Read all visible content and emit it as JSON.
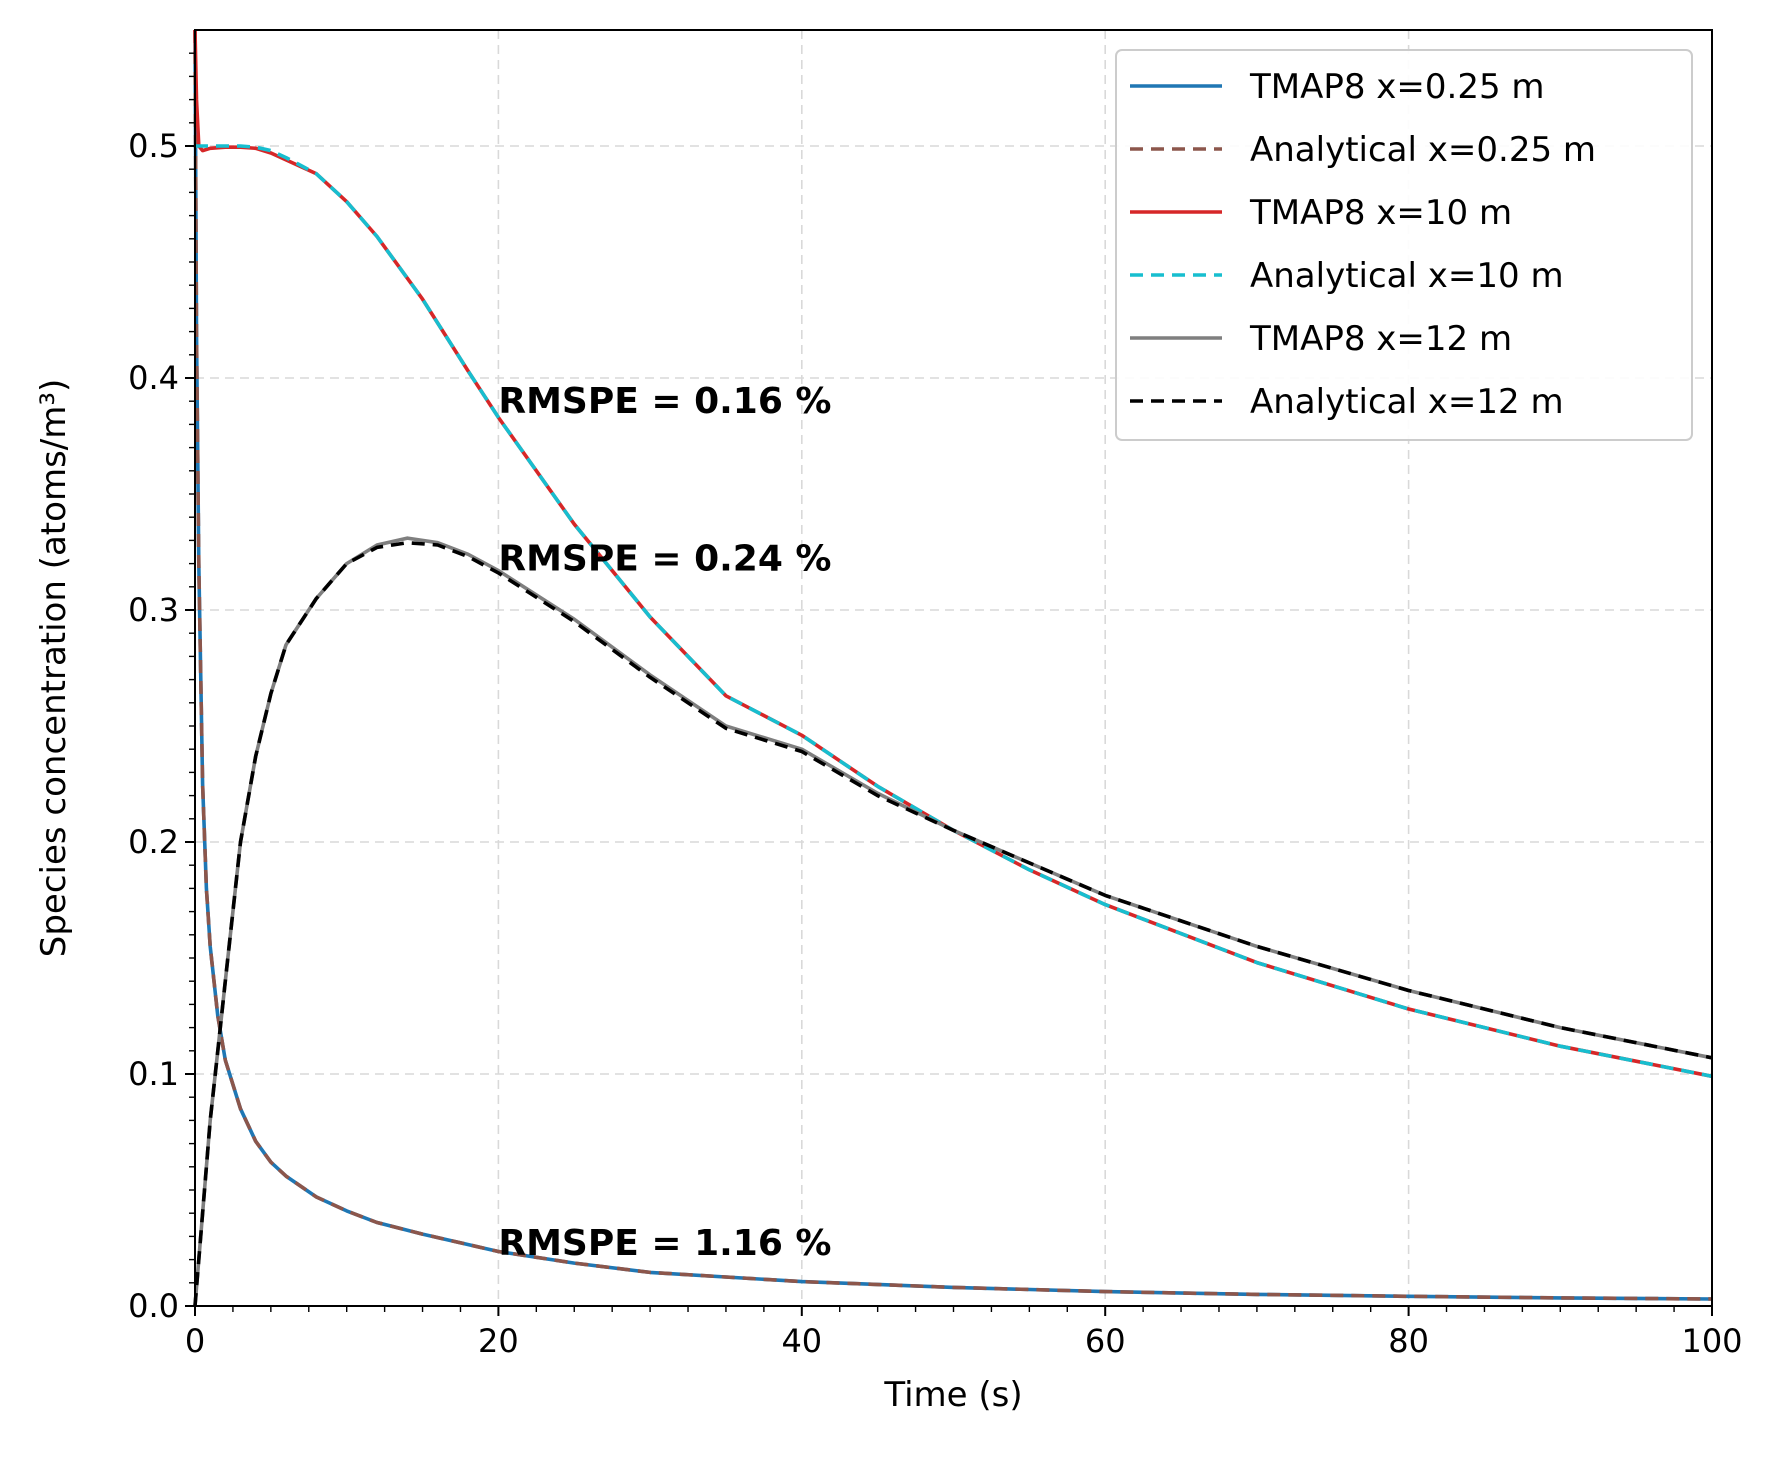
{
  "chart_data": {
    "type": "line",
    "xlabel": "Time (s)",
    "ylabel": "Species concentration (atoms/m³)",
    "xlim": [
      0,
      100
    ],
    "ylim": [
      0,
      0.55
    ],
    "x_ticks": [
      0,
      20,
      40,
      60,
      80,
      100
    ],
    "y_ticks": [
      0.0,
      0.1,
      0.2,
      0.3,
      0.4,
      0.5
    ],
    "x_tick_labels": [
      "0",
      "20",
      "40",
      "60",
      "80",
      "100"
    ],
    "y_tick_labels": [
      "0.0",
      "0.1",
      "0.2",
      "0.3",
      "0.4",
      "0.5"
    ],
    "grid": true,
    "legend_position": "top-right",
    "annotations": [
      {
        "text": "RMSPE = 0.16 %",
        "x": 20,
        "y": 0.385
      },
      {
        "text": "RMSPE = 0.24 %",
        "x": 20,
        "y": 0.317
      },
      {
        "text": "RMSPE = 1.16 %",
        "x": 20,
        "y": 0.022
      }
    ],
    "series": [
      {
        "name": "TMAP8 x=0.25 m",
        "color": "#1f77b4",
        "style": "solid",
        "x": [
          0,
          0.1,
          0.25,
          0.5,
          0.75,
          1,
          1.5,
          2,
          3,
          4,
          5,
          6,
          8,
          10,
          12,
          15,
          20,
          25,
          30,
          40,
          50,
          60,
          70,
          80,
          90,
          100
        ],
        "y": [
          0.55,
          0.42,
          0.32,
          0.225,
          0.18,
          0.155,
          0.125,
          0.106,
          0.085,
          0.071,
          0.062,
          0.056,
          0.047,
          0.041,
          0.036,
          0.031,
          0.0235,
          0.0185,
          0.0145,
          0.0105,
          0.008,
          0.0062,
          0.005,
          0.0042,
          0.0035,
          0.003
        ]
      },
      {
        "name": "Analytical x=0.25 m",
        "color": "#8c564b",
        "style": "dashed",
        "x": [
          0,
          0.1,
          0.25,
          0.5,
          0.75,
          1,
          1.5,
          2,
          3,
          4,
          5,
          6,
          8,
          10,
          12,
          15,
          20,
          25,
          30,
          40,
          50,
          60,
          70,
          80,
          90,
          100
        ],
        "y": [
          0.55,
          0.42,
          0.32,
          0.225,
          0.18,
          0.155,
          0.125,
          0.106,
          0.085,
          0.071,
          0.062,
          0.056,
          0.047,
          0.041,
          0.036,
          0.031,
          0.0235,
          0.0185,
          0.0145,
          0.0105,
          0.008,
          0.0062,
          0.005,
          0.0042,
          0.0035,
          0.003
        ]
      },
      {
        "name": "TMAP8 x=10 m",
        "color": "#d62728",
        "style": "solid",
        "x": [
          0,
          0.1,
          0.25,
          0.5,
          1,
          2,
          3,
          4,
          5,
          6,
          8,
          10,
          12,
          15,
          18,
          20,
          25,
          30,
          35,
          40,
          45,
          50,
          55,
          60,
          70,
          80,
          90,
          100
        ],
        "y": [
          0.55,
          0.52,
          0.5,
          0.498,
          0.499,
          0.4995,
          0.4995,
          0.499,
          0.497,
          0.494,
          0.488,
          0.476,
          0.461,
          0.434,
          0.403,
          0.383,
          0.337,
          0.297,
          0.263,
          0.246,
          0.224,
          0.205,
          0.188,
          0.173,
          0.148,
          0.128,
          0.112,
          0.099
        ]
      },
      {
        "name": "Analytical x=10 m",
        "color": "#17becf",
        "style": "dashed",
        "x": [
          0,
          1,
          2,
          3,
          4,
          5,
          6,
          8,
          10,
          12,
          15,
          18,
          20,
          25,
          30,
          35,
          40,
          45,
          50,
          55,
          60,
          70,
          80,
          90,
          100
        ],
        "y": [
          0.5,
          0.5,
          0.5,
          0.5,
          0.4995,
          0.498,
          0.495,
          0.488,
          0.476,
          0.461,
          0.434,
          0.403,
          0.383,
          0.337,
          0.297,
          0.263,
          0.246,
          0.224,
          0.205,
          0.188,
          0.173,
          0.148,
          0.128,
          0.112,
          0.099
        ]
      },
      {
        "name": "TMAP8 x=12 m",
        "color": "#7f7f7f",
        "style": "solid",
        "x": [
          0,
          0.5,
          1,
          1.5,
          2,
          3,
          4,
          5,
          6,
          8,
          10,
          12,
          14,
          16,
          18,
          20,
          25,
          30,
          35,
          40,
          45,
          50,
          55,
          60,
          70,
          80,
          90,
          100
        ],
        "y": [
          0.0,
          0.04,
          0.08,
          0.11,
          0.14,
          0.2,
          0.237,
          0.264,
          0.285,
          0.305,
          0.32,
          0.328,
          0.331,
          0.329,
          0.324,
          0.317,
          0.296,
          0.272,
          0.25,
          0.24,
          0.221,
          0.205,
          0.191,
          0.177,
          0.155,
          0.136,
          0.12,
          0.107
        ]
      },
      {
        "name": "Analytical x=12 m",
        "color": "#000000",
        "style": "dashed",
        "x": [
          0,
          0.5,
          1,
          1.5,
          2,
          3,
          4,
          5,
          6,
          8,
          10,
          12,
          14,
          16,
          18,
          20,
          25,
          30,
          35,
          40,
          45,
          50,
          55,
          60,
          70,
          80,
          90,
          100
        ],
        "y": [
          0.0,
          0.04,
          0.08,
          0.11,
          0.14,
          0.2,
          0.237,
          0.264,
          0.285,
          0.305,
          0.32,
          0.327,
          0.329,
          0.328,
          0.323,
          0.316,
          0.295,
          0.271,
          0.249,
          0.239,
          0.22,
          0.205,
          0.191,
          0.177,
          0.155,
          0.136,
          0.12,
          0.107
        ]
      }
    ]
  }
}
